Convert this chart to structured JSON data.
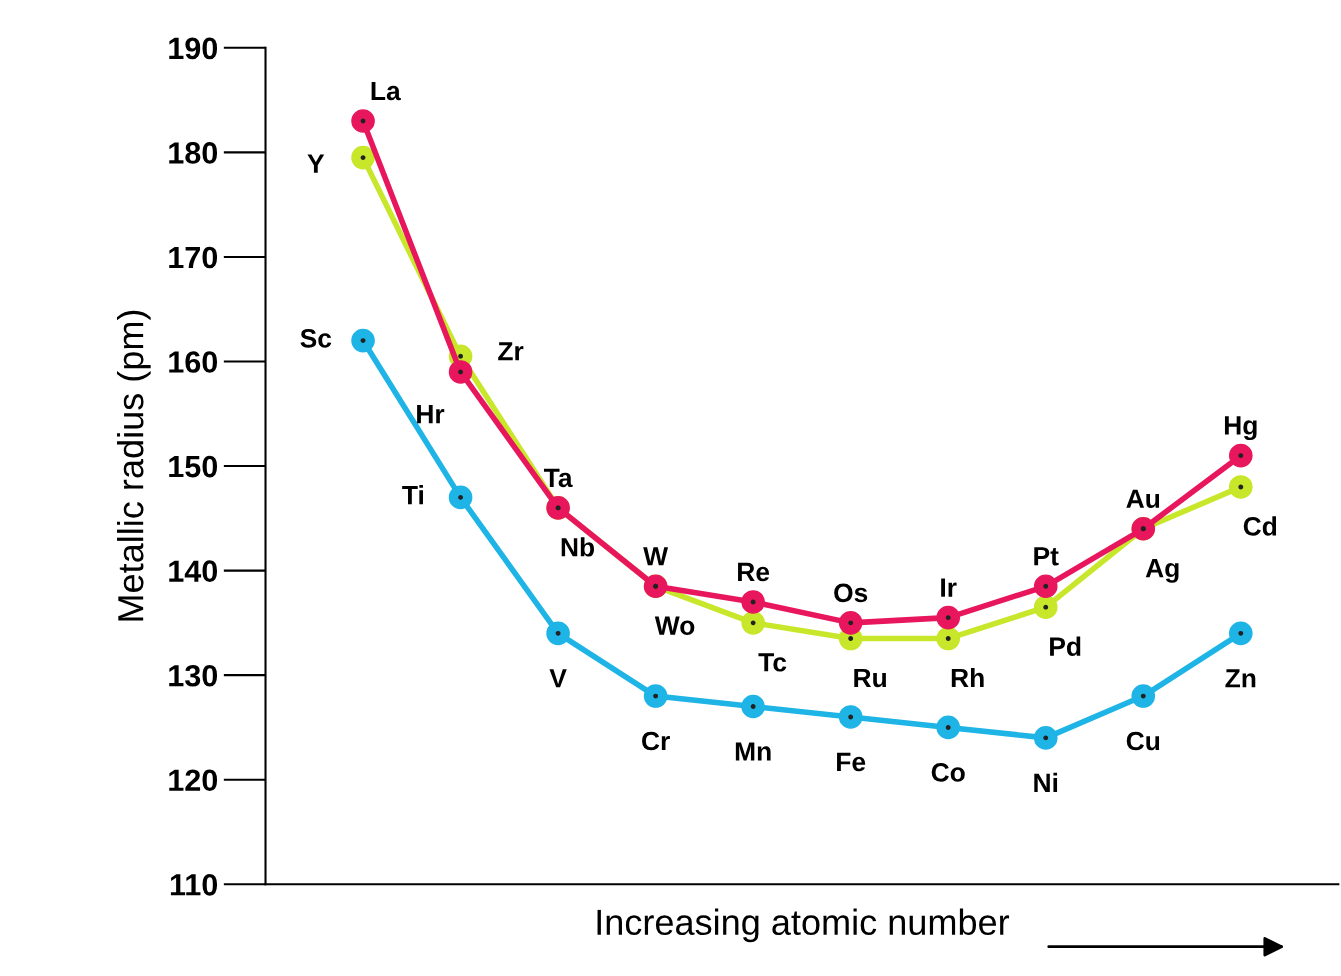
{
  "chart_data": {
    "type": "line",
    "ylabel": "Metallic radius (pm)",
    "xlabel": "Increasing atomic number",
    "categories": [
      null,
      null,
      null,
      null,
      null,
      null,
      null,
      null,
      null,
      null
    ],
    "ylim": [
      110,
      190
    ],
    "yticks": [
      110,
      120,
      130,
      140,
      150,
      160,
      170,
      180,
      190
    ],
    "grid": false,
    "legend": false,
    "marker": "circle",
    "line_style": "solid",
    "series": [
      {
        "color": "#1eb4e6",
        "values": [
          162,
          147,
          134,
          128,
          127,
          126,
          125,
          124,
          128,
          134
        ],
        "value_labels": [
          "Sc",
          "Ti",
          "V",
          "Cr",
          "Mn",
          "Fe",
          "Co",
          "Ni",
          "Cu",
          "Zn"
        ]
      },
      {
        "color": "#c8e62a",
        "values": [
          179.5,
          160.5,
          146,
          138.5,
          135,
          133.5,
          133.5,
          136.5,
          144,
          148
        ],
        "value_labels": [
          "Y",
          "Zr",
          "Nb",
          "Wo",
          "Tc",
          "Ru",
          "Rh",
          "Pd",
          "Ag",
          "Cd"
        ]
      },
      {
        "color": "#e8175d",
        "values": [
          183,
          159,
          146,
          138.5,
          137,
          135,
          135.5,
          138.5,
          144,
          151
        ],
        "value_labels": [
          "La",
          "Hr",
          "Ta",
          "W",
          "Re",
          "Os",
          "Ir",
          "Pt",
          "Au",
          "Hg"
        ]
      }
    ]
  }
}
